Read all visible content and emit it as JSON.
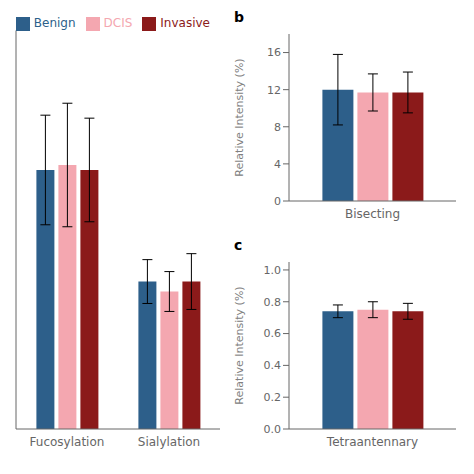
{
  "chart_data": [
    {
      "type": "bar",
      "categories": [
        "Fucosylation",
        "Sialylation"
      ],
      "series": [
        {
          "name": "Benign",
          "color": "#2d5f8a",
          "values": [
            2.6,
            1.48
          ],
          "errors": [
            0.55,
            0.22
          ]
        },
        {
          "name": "DCIS",
          "color": "#f4a7b0",
          "values": [
            2.65,
            1.38
          ],
          "errors": [
            0.62,
            0.2
          ]
        },
        {
          "name": "Invasive",
          "color": "#8b1a1a",
          "values": [
            2.6,
            1.48
          ],
          "errors": [
            0.52,
            0.28
          ]
        }
      ],
      "ylim": [
        0,
        4.0
      ],
      "tick_labels": "x",
      "legend": "upper right"
    },
    {
      "type": "bar",
      "title": "b",
      "categories": [
        "Bisecting"
      ],
      "series": [
        {
          "name": "Benign",
          "color": "#2d5f8a",
          "values": [
            12.0
          ],
          "errors": [
            3.8
          ]
        },
        {
          "name": "DCIS",
          "color": "#f4a7b0",
          "values": [
            11.7
          ],
          "errors": [
            2.0
          ]
        },
        {
          "name": "Invasive",
          "color": "#8b1a1a",
          "values": [
            11.7
          ],
          "errors": [
            2.2
          ]
        }
      ],
      "ylabel": "Relative Intensity (%)",
      "ylim": [
        0,
        18
      ],
      "yticks": [
        0,
        4,
        8,
        12,
        16
      ]
    },
    {
      "type": "bar",
      "title": "c",
      "categories": [
        "Tetraantennary"
      ],
      "series": [
        {
          "name": "Benign",
          "color": "#2d5f8a",
          "values": [
            0.74
          ],
          "errors": [
            0.04
          ]
        },
        {
          "name": "DCIS",
          "color": "#f4a7b0",
          "values": [
            0.75
          ],
          "errors": [
            0.05
          ]
        },
        {
          "name": "Invasive",
          "color": "#8b1a1a",
          "values": [
            0.74
          ],
          "errors": [
            0.05
          ]
        }
      ],
      "ylabel": "Relative Intensity (%)",
      "ylim": [
        0,
        1.05
      ],
      "yticks": [
        {
          "value": 0,
          "label": "0.0"
        },
        0.2,
        0.4,
        0.6,
        0.8,
        {
          "value": 1.0,
          "label": "1.0"
        }
      ]
    }
  ]
}
